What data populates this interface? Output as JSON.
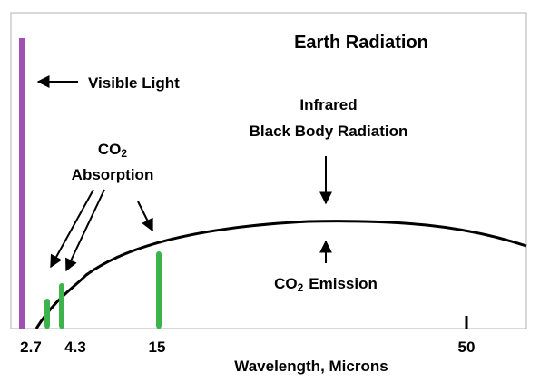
{
  "chart_data": {
    "type": "line",
    "title": "Earth Radiation",
    "xlabel": "Wavelength, Microns",
    "ylabel": "",
    "x_ticks": [
      "2.7",
      "4.3",
      "15",
      "50"
    ],
    "curve_label_line1": "Infrared",
    "curve_label_line2": "Black Body Radiation",
    "visible_label": "Visible Light",
    "absorption_label_line1": "CO",
    "absorption_label_sub": "2",
    "absorption_label_line2": "Absorption",
    "emission_label_co": "CO",
    "emission_label_sub": "2",
    "emission_label_rest": "Emission",
    "colors": {
      "visible": "#a050b0",
      "co2": "#3cb44b",
      "curve": "#000000",
      "frame": "#b0b0b0"
    }
  }
}
